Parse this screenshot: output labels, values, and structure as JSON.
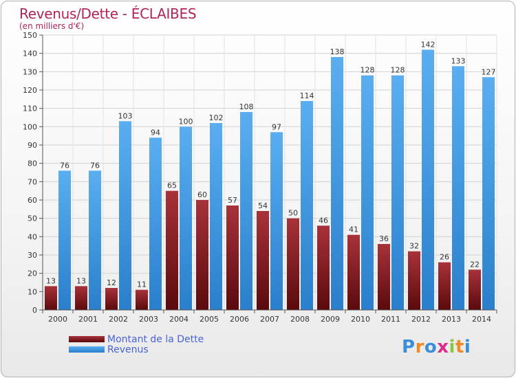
{
  "header": {
    "title": "Revenus/Dette - ÉCLAIBES",
    "subtitle": "(en milliers d'€)"
  },
  "legend": {
    "items": [
      {
        "label": "Montant de la Dette",
        "color": "#6b0f12"
      },
      {
        "label": "Revenus",
        "color": "#3d9be6"
      }
    ]
  },
  "logo": {
    "text": "Proxiti",
    "letters": [
      "P",
      "r",
      "o",
      "x",
      "i",
      "t",
      "i"
    ],
    "colors": [
      "#3a8fd8",
      "#f08a24",
      "#3a8fd8",
      "#e02a8a",
      "#8cc63f",
      "#f08a24",
      "#3a8fd8"
    ]
  },
  "chart_data": {
    "type": "bar",
    "title": "Revenus/Dette - ÉCLAIBES",
    "subtitle": "(en milliers d'€)",
    "categories": [
      "2000",
      "2001",
      "2002",
      "2003",
      "2004",
      "2005",
      "2006",
      "2007",
      "2008",
      "2009",
      "2010",
      "2011",
      "2012",
      "2013",
      "2014"
    ],
    "series": [
      {
        "name": "Montant de la Dette",
        "values": [
          13,
          13,
          12,
          11,
          65,
          60,
          57,
          54,
          50,
          46,
          41,
          36,
          32,
          26,
          22
        ],
        "color": "#6b0f12"
      },
      {
        "name": "Revenus",
        "values": [
          76,
          76,
          103,
          94,
          100,
          102,
          108,
          97,
          114,
          138,
          128,
          128,
          142,
          133,
          127
        ],
        "color": "#3d9be6"
      }
    ],
    "ylim": [
      0,
      150
    ],
    "yticks": [
      0,
      10,
      20,
      30,
      40,
      50,
      60,
      70,
      80,
      90,
      100,
      110,
      120,
      130,
      140,
      150
    ],
    "grid": true,
    "legend_position": "bottom-left"
  }
}
